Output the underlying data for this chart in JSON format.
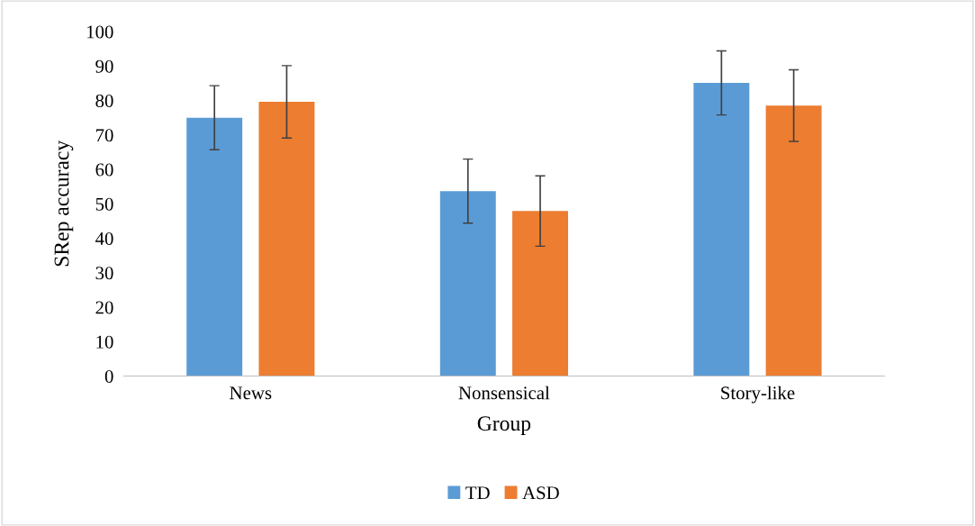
{
  "chart_data": {
    "type": "bar",
    "xlabel": "Group",
    "ylabel": "SRep accuracy",
    "categories": [
      "News",
      "Nonsensical",
      "Story-like"
    ],
    "series": [
      {
        "name": "TD",
        "color": "#5b9bd5",
        "values": [
          75,
          53.7,
          85.1
        ],
        "errors": [
          9.3,
          9.3,
          9.3
        ]
      },
      {
        "name": "ASD",
        "color": "#ed7d31",
        "values": [
          79.6,
          47.9,
          78.5
        ],
        "errors": [
          10.5,
          10.2,
          10.4
        ]
      }
    ],
    "ylim": [
      0,
      100
    ],
    "yticks": [
      0,
      10,
      20,
      30,
      40,
      50,
      60,
      70,
      80,
      90,
      100
    ],
    "grid": false,
    "legend": "bottom"
  }
}
